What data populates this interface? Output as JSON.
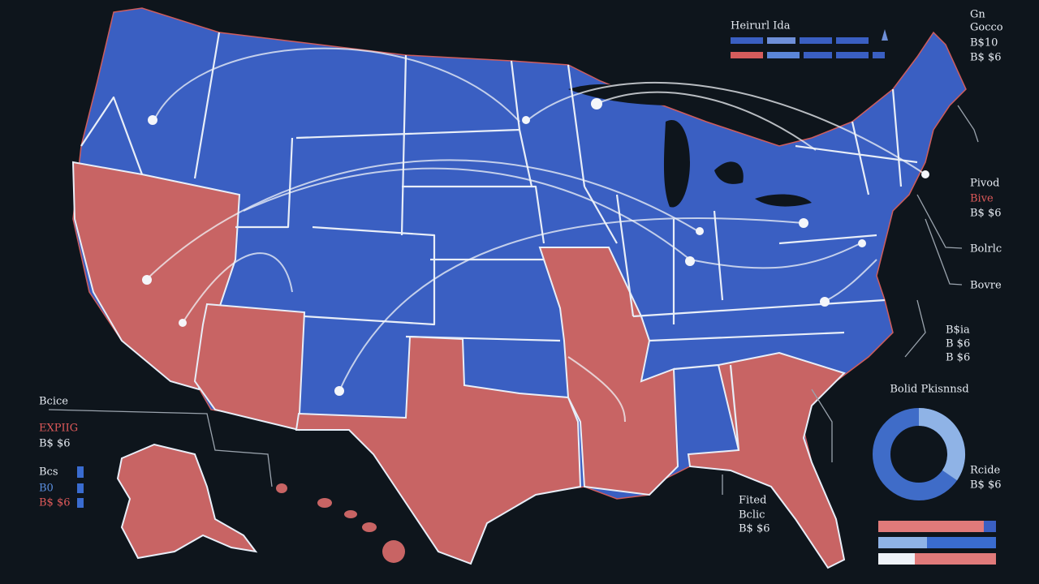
{
  "top_legend": {
    "title": "Heirurl Ida"
  },
  "top_right": {
    "lines": [
      "Gn",
      "Gocco",
      "B$10",
      "B$ $6"
    ]
  },
  "right_labels": {
    "pivot": [
      "Pivod",
      "Bive",
      "B$ $6"
    ],
    "first": "Bolrlc",
    "second": "Bovre",
    "third": [
      "B$ia",
      "B $6",
      "B $6"
    ]
  },
  "donut": {
    "title": "Bolid Pkisnnsd",
    "labels": [
      "Rcide",
      "B$ $6"
    ]
  },
  "bottom_center": [
    "Fited",
    "Bclic",
    "B$ $6"
  ],
  "left_legend": [
    "Bcice",
    "EXPIIG",
    "B$ $6",
    "Bcs",
    "B0",
    "B$ $6"
  ]
}
